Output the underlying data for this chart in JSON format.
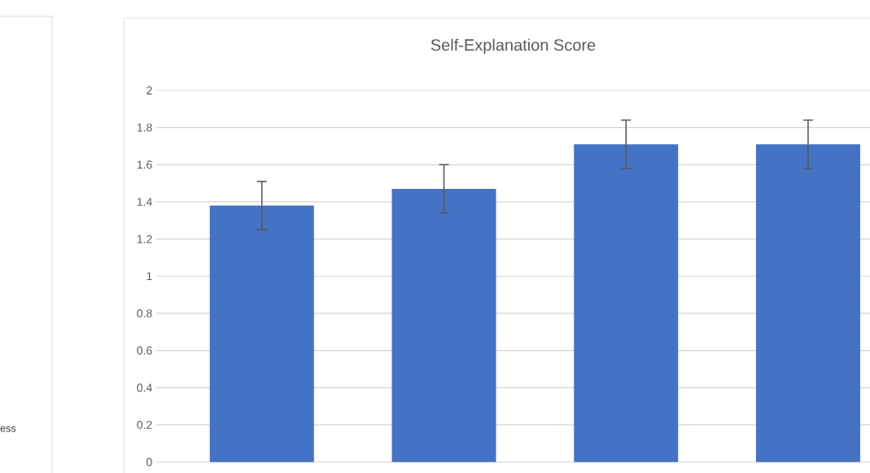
{
  "chart_data": [
    {
      "type": "other",
      "annotations": [
        "ess"
      ]
    },
    {
      "type": "bar",
      "title": "Self-Explanation Score",
      "categories": [
        null,
        null,
        null,
        null
      ],
      "values": [
        1.38,
        1.47,
        1.71,
        1.71
      ],
      "errors": [
        0.13,
        0.13,
        0.13,
        0.13
      ],
      "color": "#4472c4",
      "ylim": [
        0,
        2
      ],
      "yticks": [
        0,
        0.2,
        0.4,
        0.6,
        0.8,
        1,
        1.2,
        1.4,
        1.6,
        1.8,
        2
      ],
      "grid": "y",
      "tick_labels": "y"
    }
  ]
}
